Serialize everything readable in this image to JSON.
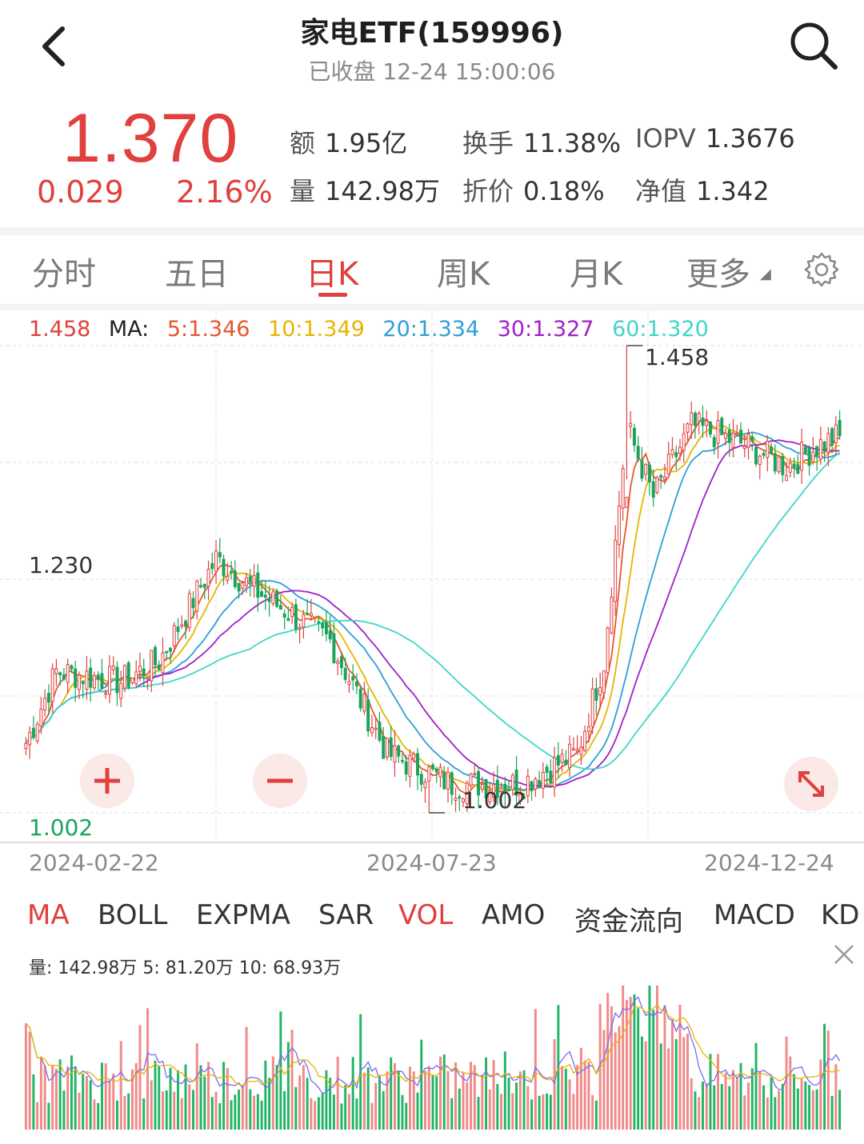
{
  "header": {
    "title": "家电ETF(159996)",
    "status": "已收盘 12-24 15:00:06"
  },
  "quote": {
    "price": "1.370",
    "change": "0.029",
    "change_pct": "2.16%",
    "stats": [
      {
        "key": "额",
        "value": "1.95亿"
      },
      {
        "key": "换手",
        "value": "11.38%"
      },
      {
        "key": "IOPV",
        "value": "1.3676"
      },
      {
        "key": "量",
        "value": "142.98万"
      },
      {
        "key": "折价",
        "value": "0.18%"
      },
      {
        "key": "净值",
        "value": "1.342"
      }
    ]
  },
  "tabs": [
    "分时",
    "五日",
    "日K",
    "周K",
    "月K",
    "更多"
  ],
  "active_tab": "日K",
  "ma_legend": {
    "high": "1.458",
    "label": "MA:",
    "items": [
      {
        "text": "5:1.346",
        "color": "#e5572f"
      },
      {
        "text": "10:1.349",
        "color": "#e8b400"
      },
      {
        "text": "20:1.334",
        "color": "#2f9fd6"
      },
      {
        "text": "30:1.327",
        "color": "#a020c8"
      },
      {
        "text": "60:1.320",
        "color": "#3fd6c8"
      }
    ]
  },
  "axis": {
    "y_mid": "1.230",
    "y_low": "1.002",
    "annot_high": "1.458",
    "annot_low": "1.002",
    "dates": [
      "2024-02-22",
      "2024-07-23",
      "2024-12-24"
    ]
  },
  "indicator_tabs": [
    "MA",
    "BOLL",
    "EXPMA",
    "SAR",
    "VOL",
    "AMO",
    "资金流向",
    "MACD",
    "KD"
  ],
  "indicator_active": [
    "MA",
    "VOL"
  ],
  "volume_legend": "量: 142.98万  5: 81.20万  10: 68.93万",
  "colors": {
    "up": "#e0403e",
    "down": "#1aa35a",
    "accent": "#e0403e"
  },
  "chart_data": {
    "type": "candlestick",
    "x_start": "2024-02-22",
    "x_end": "2024-12-24",
    "ylim": [
      1.002,
      1.458
    ],
    "max": 1.458,
    "min": 1.002,
    "last_close": 1.37,
    "ma": {
      "MA5": 1.346,
      "MA10": 1.349,
      "MA20": 1.334,
      "MA30": 1.327,
      "MA60": 1.32
    },
    "close_anchors": [
      [
        0,
        1.07
      ],
      [
        8,
        1.14
      ],
      [
        25,
        1.13
      ],
      [
        35,
        1.15
      ],
      [
        50,
        1.25
      ],
      [
        60,
        1.22
      ],
      [
        80,
        1.17
      ],
      [
        95,
        1.06
      ],
      [
        112,
        1.03
      ],
      [
        130,
        1.03
      ],
      [
        145,
        1.06
      ],
      [
        152,
        1.15
      ],
      [
        158,
        1.38
      ],
      [
        165,
        1.31
      ],
      [
        175,
        1.38
      ],
      [
        190,
        1.36
      ],
      [
        200,
        1.34
      ],
      [
        208,
        1.36
      ],
      [
        214,
        1.37
      ]
    ],
    "volume": {
      "last": "142.98万",
      "ma5": "81.20万",
      "ma10": "68.93万"
    }
  }
}
